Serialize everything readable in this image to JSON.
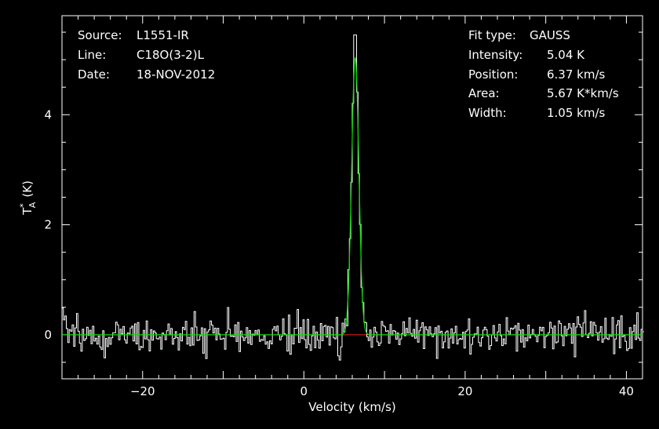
{
  "chart_data": {
    "type": "line",
    "title": "",
    "xlabel": "Velocity (km/s)",
    "ylabel": {
      "base": "T",
      "sup": "*",
      "sub": "A",
      "unit": "(K)"
    },
    "xlim": [
      -30,
      42
    ],
    "ylim": [
      -0.8,
      5.8
    ],
    "xticks": [
      -20,
      0,
      20,
      40
    ],
    "yticks": [
      0,
      2,
      4
    ],
    "grid": false,
    "legend": "none",
    "header_left": [
      {
        "key": "Source:",
        "value": "L1551-IR"
      },
      {
        "key": "Line:",
        "value": "C18O(3-2)L"
      },
      {
        "key": "Date:",
        "value": "18-NOV-2012"
      }
    ],
    "fit_type": {
      "key": "Fit type:",
      "value": "GAUSS"
    },
    "fit_params": [
      {
        "key": "Intensity:",
        "value": "5.04 K"
      },
      {
        "key": "Position:",
        "value": "6.37 km/s"
      },
      {
        "key": "Area:",
        "value": "5.67 K*km/s"
      },
      {
        "key": "Width:",
        "value": "1.05 km/s"
      }
    ],
    "gaussian": {
      "amplitude": 5.04,
      "center": 6.37,
      "fwhm": 1.05
    },
    "noise_rms": 0.17,
    "channel_width": 0.18,
    "series": [
      {
        "values_from": "spectrum",
        "color": "#ffffff"
      },
      {
        "values_from": "gaussian_fit",
        "color": "#00dd00"
      },
      {
        "values_from": "baseline",
        "color": "#ff2020"
      }
    ]
  }
}
